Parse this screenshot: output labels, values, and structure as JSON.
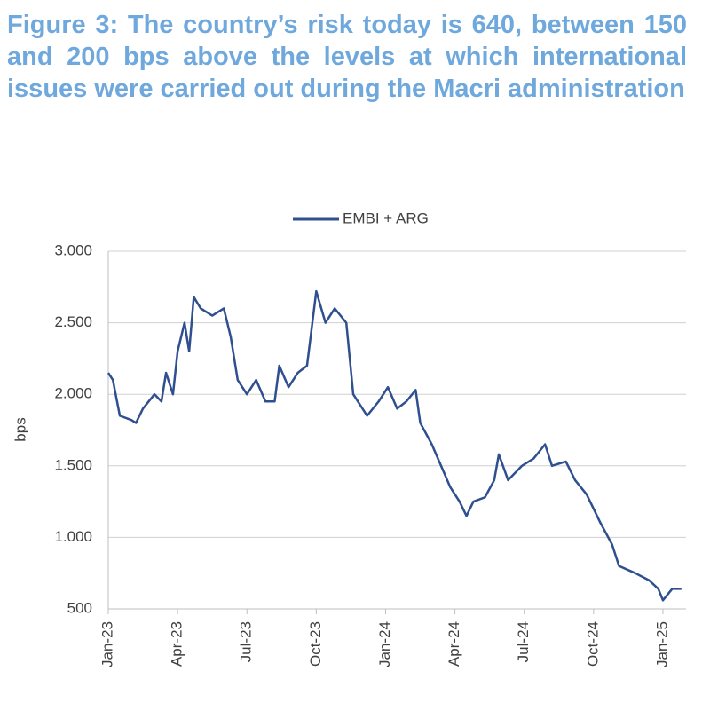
{
  "chart_data": {
    "type": "line",
    "title": "Figure 3: The country’s risk today is 640, between 150 and 200 bps above the levels at which international issues were carried out during the Macri administration",
    "y_label": "bps",
    "x": [
      0,
      0.2,
      0.5,
      1.0,
      1.2,
      1.5,
      2.0,
      2.3,
      2.5,
      2.8,
      3.0,
      3.3,
      3.5,
      3.7,
      4.0,
      4.5,
      5.0,
      5.3,
      5.6,
      6.0,
      6.4,
      6.8,
      7.2,
      7.4,
      7.8,
      8.2,
      8.6,
      9.0,
      9.4,
      9.8,
      10.3,
      10.6,
      11.2,
      11.7,
      12.1,
      12.5,
      12.9,
      13.3,
      13.5,
      14.0,
      14.4,
      14.8,
      15.2,
      15.5,
      15.8,
      16.3,
      16.7,
      16.9,
      17.3,
      17.9,
      18.4,
      18.9,
      19.2,
      19.8,
      20.2,
      20.7,
      21.3,
      21.8,
      22.1,
      22.8,
      23.4,
      23.8,
      24.0,
      24.4,
      24.8
    ],
    "series": [
      {
        "name": "EMBI + ARG",
        "color": "#2f4f8f",
        "values": [
          2150,
          2100,
          1850,
          1820,
          1800,
          1900,
          2000,
          1950,
          2150,
          2000,
          2300,
          2500,
          2300,
          2680,
          2600,
          2550,
          2600,
          2400,
          2100,
          2000,
          2100,
          1950,
          1950,
          2200,
          2050,
          2150,
          2200,
          2720,
          2500,
          2600,
          2500,
          2000,
          1850,
          1950,
          2050,
          1900,
          1950,
          2030,
          1800,
          1650,
          1500,
          1350,
          1250,
          1150,
          1250,
          1280,
          1400,
          1580,
          1400,
          1500,
          1550,
          1650,
          1500,
          1530,
          1400,
          1300,
          1100,
          950,
          800,
          750,
          700,
          640,
          560,
          640,
          640
        ]
      }
    ],
    "xlim": [
      0,
      25
    ],
    "xticks": [
      {
        "value": 0,
        "label": "Jan-23"
      },
      {
        "value": 3,
        "label": "Apr-23"
      },
      {
        "value": 6,
        "label": "Jul-23"
      },
      {
        "value": 9,
        "label": "Oct-23"
      },
      {
        "value": 12,
        "label": "Jan-24"
      },
      {
        "value": 15,
        "label": "Apr-24"
      },
      {
        "value": 18,
        "label": "Jul-24"
      },
      {
        "value": 21,
        "label": "Oct-24"
      },
      {
        "value": 24,
        "label": "Jan-25"
      }
    ],
    "ylim": [
      500,
      3000
    ],
    "yticks": [
      500,
      {
        "value": 1000,
        "label": "1.000"
      },
      {
        "value": 1500,
        "label": "1.500"
      },
      {
        "value": 2000,
        "label": "2.000"
      },
      {
        "value": 2500,
        "label": "2.500"
      },
      {
        "value": 3000,
        "label": "3.000"
      }
    ],
    "grid": true,
    "legend": "top"
  }
}
